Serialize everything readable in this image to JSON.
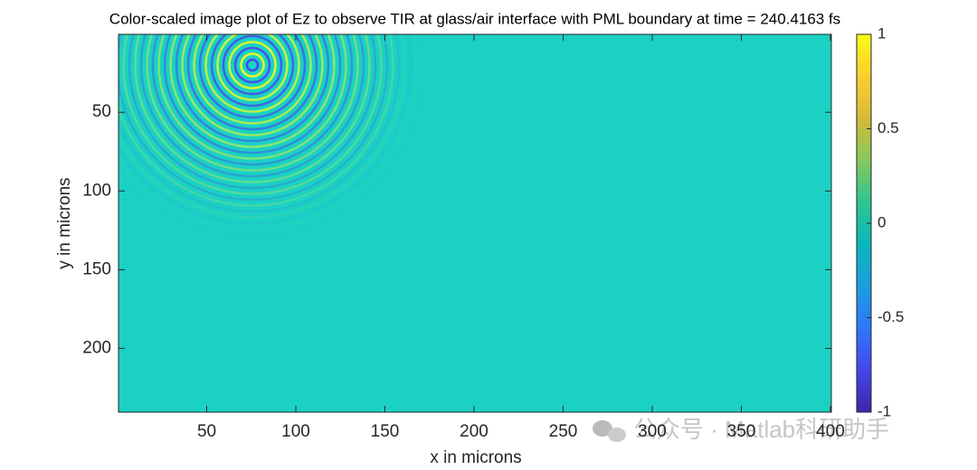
{
  "chart_data": {
    "type": "image",
    "title": "Color-scaled image plot of Ez to observe TIR at glass/air interface with PML boundary at time = 240.4163 fs",
    "x_label": "x in microns",
    "y_label": "y in microns",
    "xlim": [
      0.5,
      400.5
    ],
    "xticks": [
      50,
      100,
      150,
      200,
      250,
      300,
      350,
      400
    ],
    "ylim": [
      0.5,
      240.5
    ],
    "y_reversed": true,
    "yticks": [
      50,
      100,
      150,
      200
    ],
    "image_color": "#1bd1c4",
    "colorbar": {
      "lim": [
        -1,
        1
      ],
      "ticks": [
        -1,
        -0.5,
        0,
        0.5,
        1
      ],
      "colormap": [
        "#3e26a8",
        "#4746eb",
        "#2f77fb",
        "#1c9edd",
        "#0ab7bc",
        "#2ec595",
        "#86c85a",
        "#d7ba38",
        "#fcce2e",
        "#f9fb15"
      ]
    },
    "watermark": "公众号 · Matlab科研助手"
  }
}
